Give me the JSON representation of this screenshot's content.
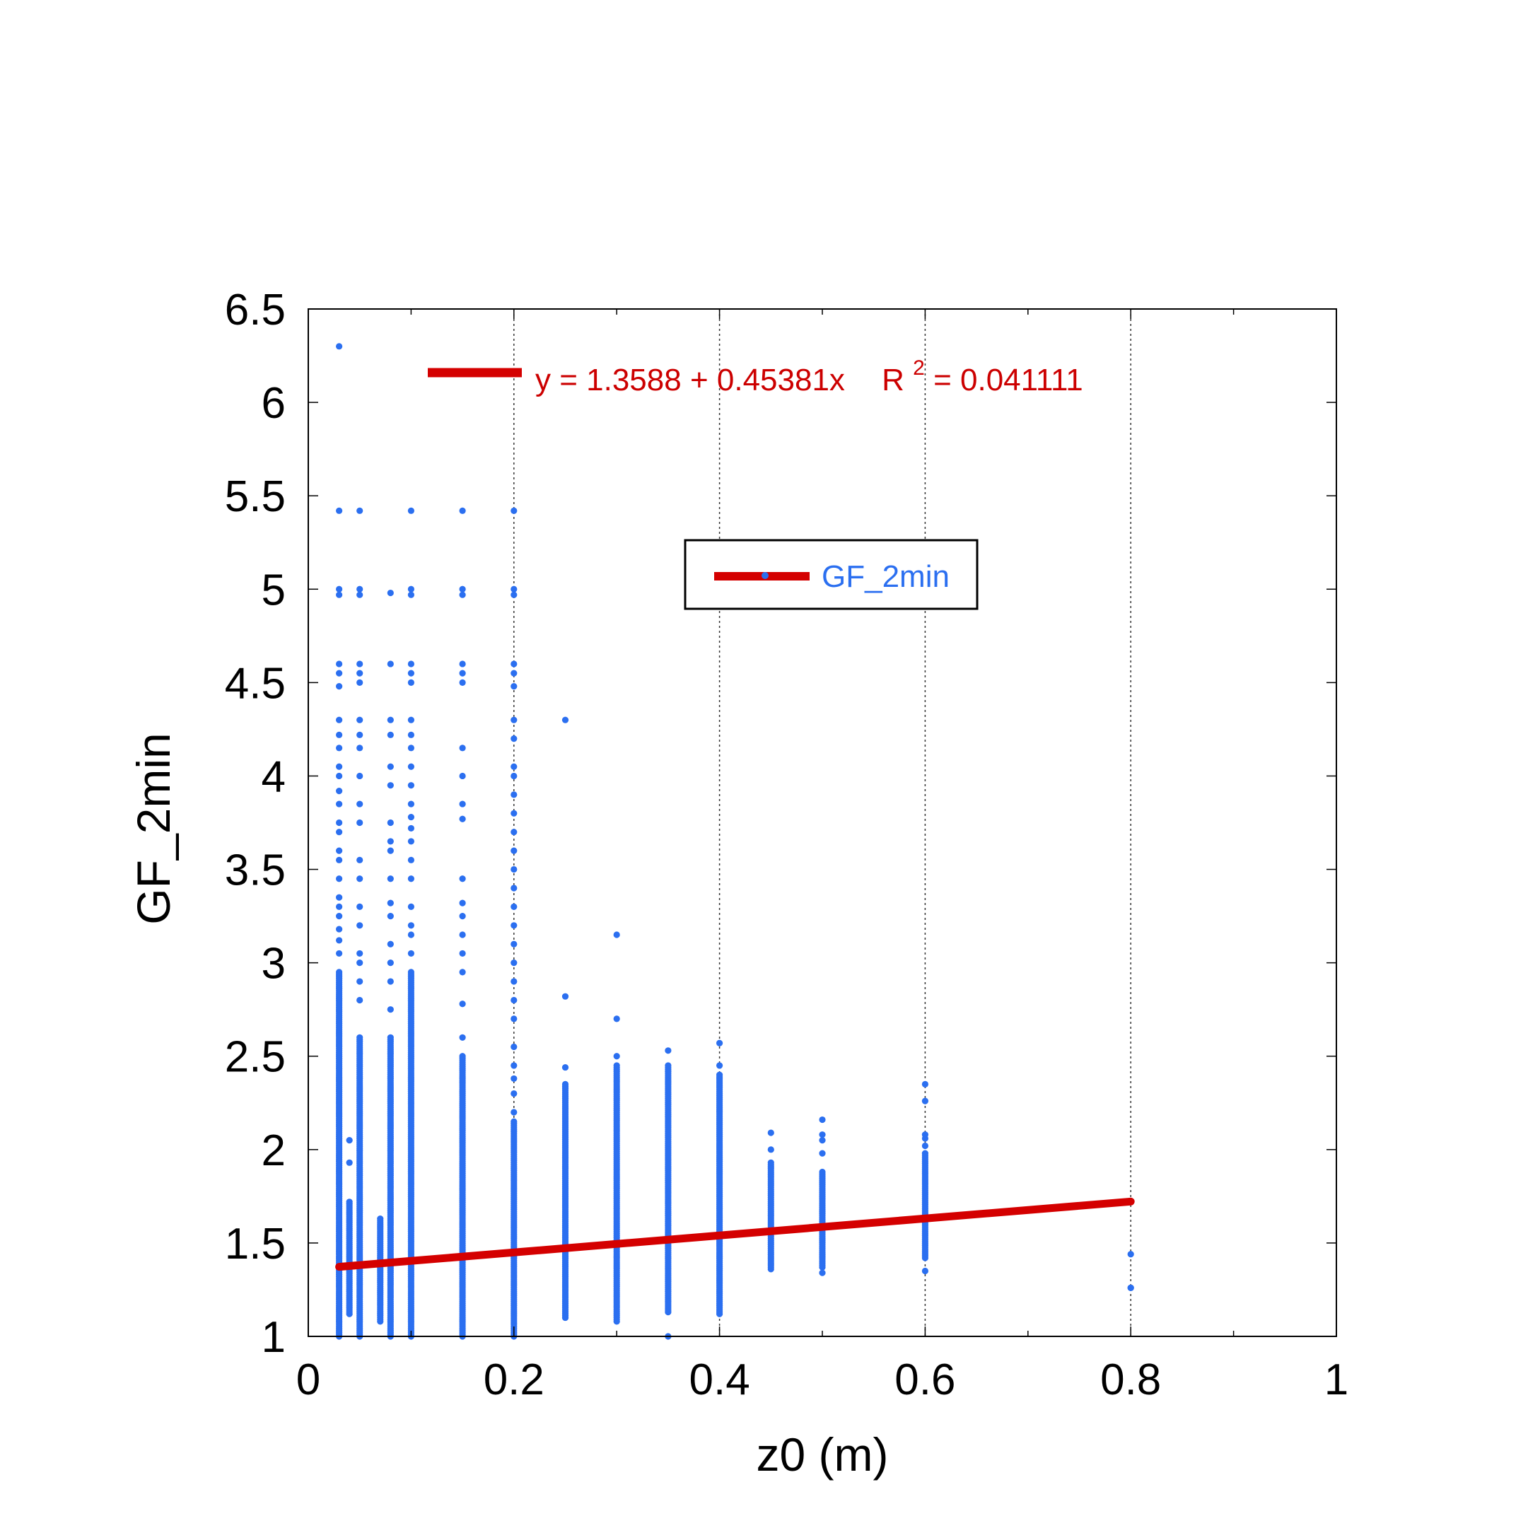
{
  "chart_data": {
    "type": "scatter",
    "xlabel": "z0 (m)",
    "ylabel": "GF_2min",
    "xlim": [
      0,
      1
    ],
    "ylim": [
      1,
      6.5
    ],
    "x_ticks": [
      "0",
      "0.2",
      "0.4",
      "0.6",
      "0.8",
      "1"
    ],
    "y_ticks": [
      "1",
      "1.5",
      "2",
      "2.5",
      "3",
      "3.5",
      "4",
      "4.5",
      "5",
      "5.5",
      "6",
      "6.5"
    ],
    "x_tick_values": [
      0,
      0.2,
      0.4,
      0.6,
      0.8,
      1
    ],
    "y_tick_values": [
      1,
      1.5,
      2,
      2.5,
      3,
      3.5,
      4,
      4.5,
      5,
      5.5,
      6,
      6.5
    ],
    "x_minor_step": 0.1,
    "vertical_grid_at": [
      0.2,
      0.4,
      0.6,
      0.8
    ],
    "grid": "vertical dotted",
    "legend": {
      "label": "GF_2min",
      "placement": "upper-center"
    },
    "colors": {
      "points": "#2b6ff0",
      "fit": "#d40000",
      "axes": "#000000"
    },
    "fit": {
      "equation": "y = 1.3588 + 0.45381x",
      "r2_prefix": "R",
      "r2_sup": "2",
      "r2_value": "= 0.041111",
      "intercept": 1.3588,
      "slope": 0.45381,
      "x_range": [
        0.03,
        0.8
      ]
    },
    "series": [
      {
        "name": "GF_2min",
        "columns": [
          {
            "x": 0.03,
            "range": [
              1.0,
              2.95
            ],
            "outliers": [
              3.05,
              3.12,
              3.18,
              3.25,
              3.3,
              3.35,
              3.45,
              3.55,
              3.6,
              3.7,
              3.75,
              3.85,
              3.92,
              4.0,
              4.05,
              4.15,
              4.22,
              4.3,
              4.48,
              4.55,
              4.6,
              4.97,
              5.0,
              5.42,
              6.3
            ]
          },
          {
            "x": 0.04,
            "range": [
              1.12,
              1.72
            ],
            "outliers": [
              1.93,
              2.05
            ]
          },
          {
            "x": 0.05,
            "range": [
              1.0,
              2.6
            ],
            "outliers": [
              2.8,
              2.9,
              3.0,
              3.05,
              3.2,
              3.3,
              3.45,
              3.55,
              3.75,
              3.85,
              4.0,
              4.15,
              4.22,
              4.3,
              4.5,
              4.55,
              4.6,
              4.97,
              5.0,
              5.42
            ]
          },
          {
            "x": 0.07,
            "range": [
              1.08,
              1.63
            ],
            "outliers": []
          },
          {
            "x": 0.08,
            "range": [
              1.0,
              2.6
            ],
            "outliers": [
              2.75,
              2.9,
              3.0,
              3.1,
              3.25,
              3.32,
              3.45,
              3.6,
              3.65,
              3.75,
              3.95,
              4.05,
              4.22,
              4.3,
              4.6,
              4.98
            ]
          },
          {
            "x": 0.1,
            "range": [
              1.0,
              2.95
            ],
            "outliers": [
              3.05,
              3.15,
              3.2,
              3.3,
              3.45,
              3.55,
              3.65,
              3.72,
              3.78,
              3.85,
              3.95,
              4.05,
              4.15,
              4.22,
              4.3,
              4.5,
              4.55,
              4.6,
              4.97,
              5.0,
              5.42
            ]
          },
          {
            "x": 0.15,
            "range": [
              1.0,
              2.5
            ],
            "outliers": [
              2.6,
              2.78,
              2.95,
              3.05,
              3.15,
              3.25,
              3.32,
              3.45,
              3.77,
              3.85,
              4.0,
              4.15,
              4.5,
              4.55,
              4.6,
              4.97,
              5.0,
              5.42
            ]
          },
          {
            "x": 0.2,
            "range": [
              1.0,
              2.15
            ],
            "outliers": [
              2.2,
              2.3,
              2.38,
              2.45,
              2.55,
              2.7,
              2.8,
              2.9,
              3.0,
              3.1,
              3.2,
              3.3,
              3.4,
              3.5,
              3.6,
              3.7,
              3.8,
              3.9,
              4.0,
              4.05,
              4.2,
              4.3,
              4.48,
              4.55,
              4.6,
              4.97,
              5.0,
              5.42
            ]
          },
          {
            "x": 0.25,
            "range": [
              1.1,
              2.35
            ],
            "outliers": [
              2.44,
              2.82,
              4.3
            ]
          },
          {
            "x": 0.3,
            "range": [
              1.08,
              2.45
            ],
            "outliers": [
              2.5,
              2.7,
              3.15
            ]
          },
          {
            "x": 0.35,
            "range": [
              1.13,
              2.45
            ],
            "outliers": [
              2.53,
              1.0
            ]
          },
          {
            "x": 0.4,
            "range": [
              1.12,
              2.4
            ],
            "outliers": [
              2.45,
              2.57
            ]
          },
          {
            "x": 0.45,
            "range": [
              1.36,
              1.93
            ],
            "outliers": [
              2.0,
              2.09
            ]
          },
          {
            "x": 0.5,
            "range": [
              1.37,
              1.88
            ],
            "outliers": [
              1.34,
              1.98,
              2.05,
              2.08,
              2.16
            ]
          },
          {
            "x": 0.6,
            "range": [
              1.42,
              1.98
            ],
            "outliers": [
              1.35,
              2.02,
              2.06,
              2.08,
              2.26,
              2.35
            ]
          },
          {
            "x": 0.8,
            "range": [
              1.26,
              1.26
            ],
            "outliers": [
              1.44
            ]
          }
        ]
      }
    ]
  }
}
